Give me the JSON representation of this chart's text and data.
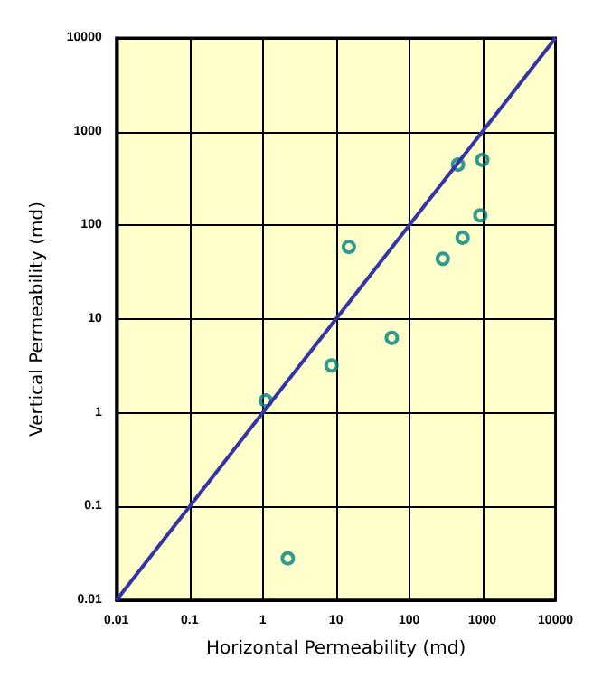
{
  "chart_data": {
    "type": "scatter",
    "xlabel": "Horizontal Permeability (md)",
    "ylabel": "Vertical Permeability (md)",
    "log": "xy",
    "grid": true,
    "marker": "circle",
    "xlim": [
      0.01,
      10000
    ],
    "ylim": [
      0.01,
      10000
    ],
    "xticks": [
      0.01,
      0.1,
      1,
      10,
      100,
      1000,
      10000
    ],
    "yticks": [
      0.01,
      0.1,
      1,
      10,
      100,
      1000,
      10000
    ],
    "series": [
      {
        "color": "#008080",
        "x": [
          1.1,
          2.2,
          8.7,
          15,
          58,
          288,
          465,
          537,
          940,
          1000
        ],
        "values": [
          1.35,
          0.028,
          3.2,
          59,
          6.3,
          44,
          445,
          74,
          128,
          500
        ]
      },
      {
        "type": "line",
        "color": "#3333aa",
        "line_style": "solid",
        "marker": "none",
        "x": [
          0.01,
          10000
        ],
        "values": [
          0.01,
          10000
        ]
      }
    ]
  }
}
